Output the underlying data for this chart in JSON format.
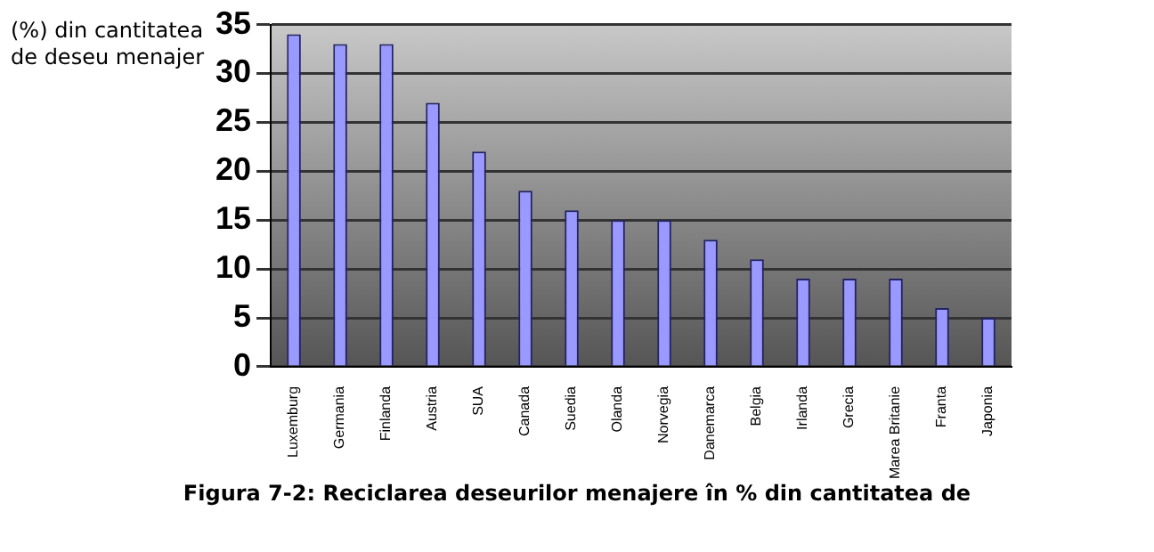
{
  "chart_data": {
    "type": "bar",
    "ylabel": "(%) din cantitatea de deseu menajer",
    "categories": [
      "Luxemburg",
      "Germania",
      "Finlanda",
      "Austria",
      "SUA",
      "Canada",
      "Suedia",
      "Olanda",
      "Norvegia",
      "Danemarca",
      "Belgia",
      "Irlanda",
      "Grecia",
      "Marea Britanie",
      "Franta",
      "Japonia"
    ],
    "values": [
      34,
      33,
      33,
      27,
      22,
      18,
      16,
      15,
      15,
      13,
      11,
      9,
      9,
      9,
      6,
      5
    ],
    "color": "#9999ff",
    "ylim": [
      0,
      35
    ],
    "yticks": [
      0,
      5,
      10,
      15,
      20,
      25,
      30,
      35
    ],
    "grid": "y",
    "annotations": [
      "Figura 7-2: Reciclarea deseurilor menajere în % din cantitatea de"
    ]
  }
}
